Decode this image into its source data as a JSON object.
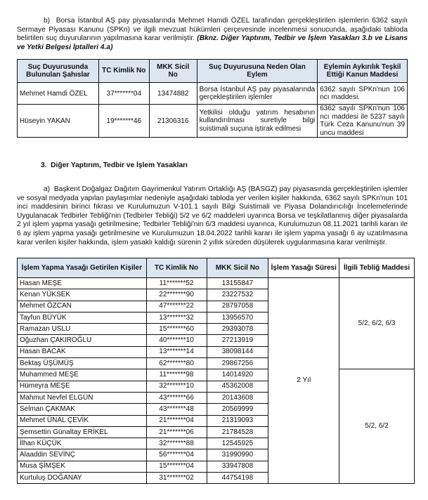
{
  "para_b": {
    "marker": "b)",
    "text": "Borsa İstanbul AŞ pay piyasalarında Mehmet Hamdi ÖZEL tarafından gerçekleştirilen işlemlerin 6362 sayılı Sermaye Piyasası Kanunu (SPKn) ve ilgili mevzuat hükümleri çerçevesinde incelenmesi sonucunda, aşağıdaki tabloda belirtilen suç duyurularının yapılmasına karar verilmiştir.",
    "ref": "(Bknz. Diğer Yaptırım, Tedbir ve İşlem Yasakları 3.b ve Lisans ve Yetki Belgesi İptalleri 4.a)"
  },
  "table1": {
    "headers": [
      "Suç Duyurusunda Bulunulan Şahıslar",
      "TC Kimlik No",
      "MKK Sicil No",
      "Suç Duyurusuna Neden Olan Eylem",
      "Eylemin Aykırılık Teşkil Ettiği Kanun Maddesi"
    ],
    "rows": [
      [
        "Mehmet Hamdi ÖZEL",
        "37*******04",
        "13474882",
        "Borsa İstanbul AŞ pay piyasalarında gerçekleştirilen işlemler",
        "6362 sayılı SPKn'nun 106 ncı maddesi."
      ],
      [
        "Hüseyin YAKAN",
        "19*******46",
        "21306316",
        "Yetkilisi olduğu yatırım hesabının kullandırılması suretiyle bilgi suistimali suçuna iştirak edilmesi",
        "6362 sayılı SPKn'nun 106 ncı maddesi ile 5237 sayılı Türk Ceza Kanunu'nun 39 uncu maddesi"
      ]
    ]
  },
  "section3": {
    "number": "3.",
    "title": "Diğer Yaptırım, Tedbir ve İşlem Yasakları"
  },
  "para_a": {
    "marker": "a)",
    "text": "Başkent Doğalgaz Dağıtım Gayrimenkul Yatırım Ortaklığı AŞ (BASGZ) pay piyasasında gerçekleştirilen işlemler ve sosyal medyada yapılan paylaşımlar nedeniyle aşağıdaki tabloda yer verilen kişiler hakkında, 6362 sayılı SPKn'nun 101 inci maddesinin birinci fıkrası ve Kurulumuzun V-101.1 sayılı Bilgi Suistimali ve Piyasa Dolandırıcılığı İncelemelerinde Uygulanacak Tedbirler Tebliği'nin (Tedbirler Tebliği) 5/2 ve 6/2 maddeleri uyarınca Borsa ve teşkilatlanmış diğer piyasalarda 2 yıl işlem yapma yasağı getirilmesine; Tedbirler Tebliği'nin 6/3 maddesi uyarınca, Kurulumuzun 08.11.2021 tarihli kararı ile 6 ay işlem yapma yasağı getirilmesine ve Kurulumuzun 18.04.2022 tarihli kararı ile işlem yapma yasağı 6 ay uzatılmasına karar verilen kişiler hakkında, işlem yasaklı kaldığı sürenin 2 yıllık süreden düşülerek uygulanmasına karar verilmiştir."
  },
  "table2": {
    "headers": [
      "İşlem Yapma Yasağı Getirilen Kişiler",
      "TC Kimlik No",
      "MKK Sicil No",
      "İşlem Yasağı Süresi",
      "İlgili Tebliğ Maddesi"
    ],
    "duration": "2 Yıl",
    "article_group_1": "5/2, 6/2, 6/3",
    "article_group_2": "5/2, 6/2",
    "rows": [
      [
        "Hasan MEŞE",
        "11*******52",
        "13155847"
      ],
      [
        "Kenan YÜKSEK",
        "22*******90",
        "23227532"
      ],
      [
        "Mehmet ÖZCAN",
        "47*******22",
        "28797058"
      ],
      [
        "Tayfun BÜYÜK",
        "13*******32",
        "13956570"
      ],
      [
        "Ramazan USLU",
        "15*******60",
        "29393078"
      ],
      [
        "Oğuzhan ÇAKIROĞLU",
        "40*******10",
        "27213919"
      ],
      [
        "Hasan BACAK",
        "13*******14",
        "38098144"
      ],
      [
        "Bektaş ÜŞÜMÜŞ",
        "62*******80",
        "29867256"
      ],
      [
        "Muhammed MEŞE",
        "11*******98",
        "14014920"
      ],
      [
        "Hümeyra MEŞE",
        "32*******10",
        "45362008"
      ],
      [
        "Mahmut Nevfel ELGÜN",
        "43*******66",
        "20143608"
      ],
      [
        "Selman ÇAKMAK",
        "43*******48",
        "20569999"
      ],
      [
        "Mehmet ÜNAL ÇEVİK",
        "21*******04",
        "21319093"
      ],
      [
        "Şemsettin Günaltay ERİKEL",
        "21*******06",
        "21784528"
      ],
      [
        "İlhan KÜÇÜK",
        "32*******88",
        "12545925"
      ],
      [
        "Alaaddin SEVİNÇ",
        "56*******04",
        "31990990"
      ],
      [
        "Musa ŞİMŞEK",
        "15*******04",
        "33947808"
      ],
      [
        "Kurtuluş DOĞANAY",
        "31*******02",
        "44754198"
      ]
    ]
  }
}
